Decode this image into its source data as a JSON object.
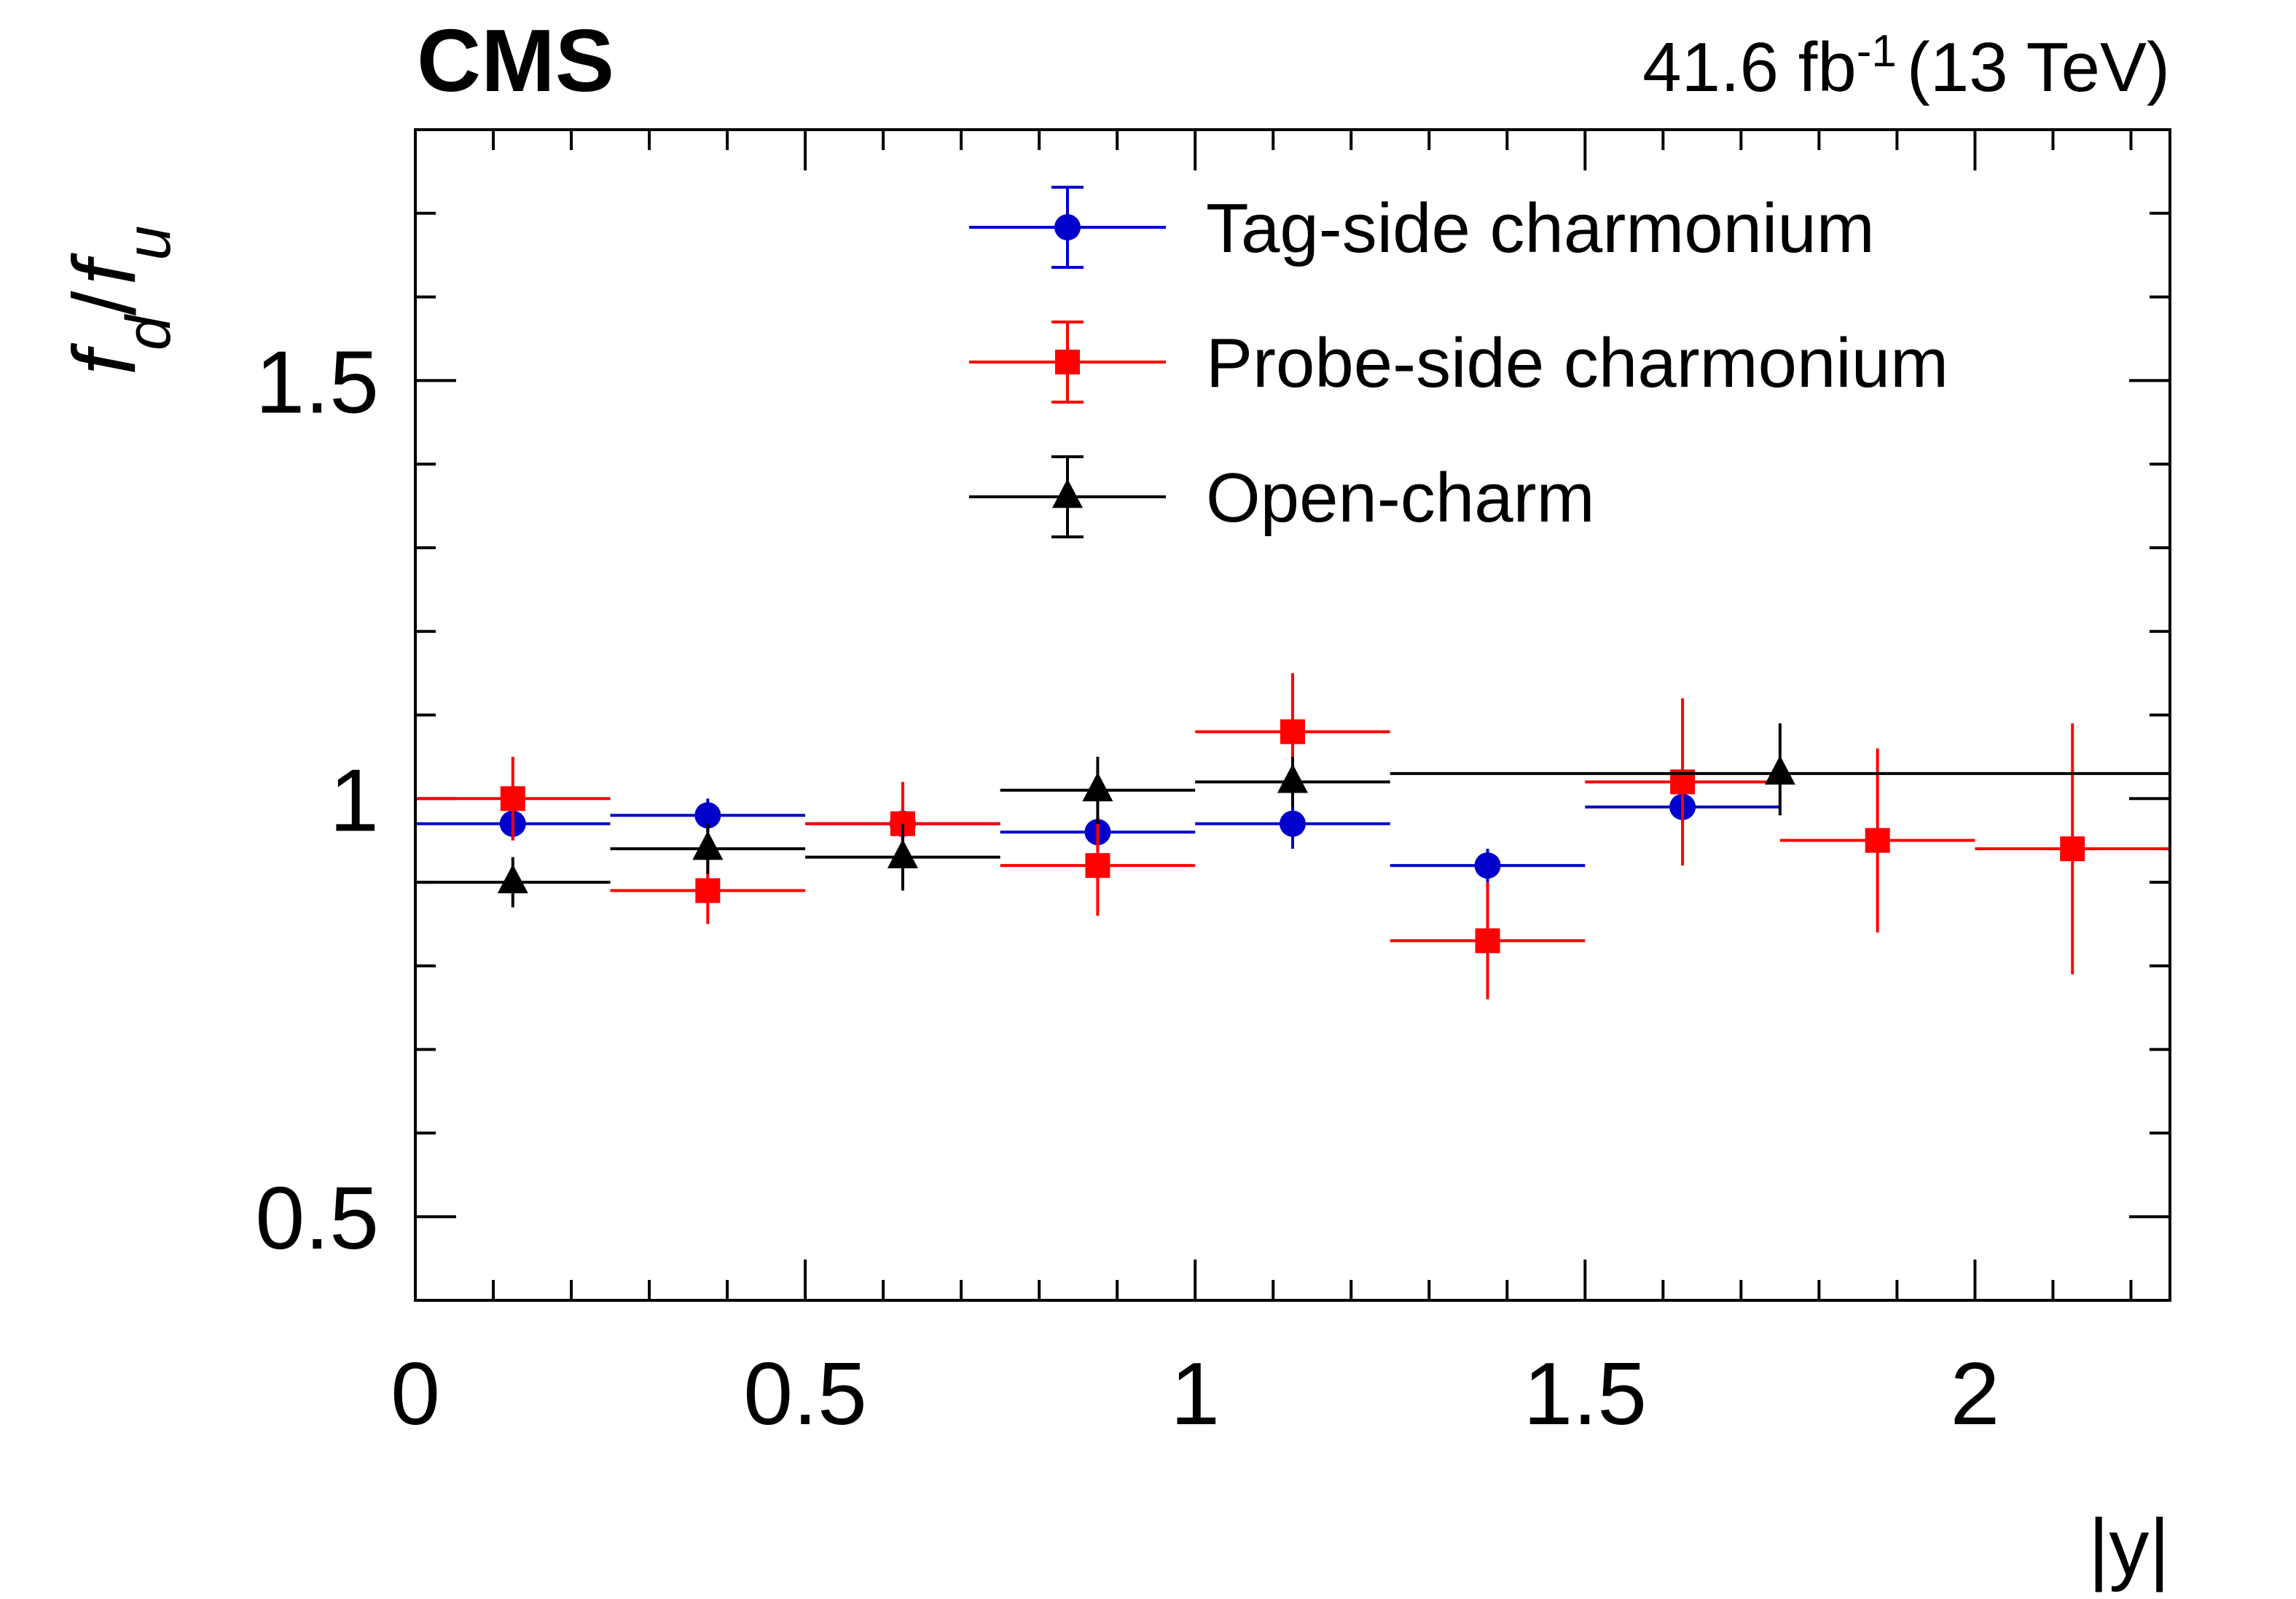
{
  "chart_data": {
    "type": "scatter",
    "experiment": "CMS",
    "luminosity": {
      "value": "41.6 fb",
      "exponent": "-1",
      "energy": "(13 TeV)"
    },
    "xlabel": "|y|",
    "ylabel": {
      "numerator": "f",
      "numerator_sub": "d",
      "slash": "/",
      "denominator": "f",
      "denominator_sub": "u"
    },
    "xlim": [
      0,
      2.25
    ],
    "ylim": [
      0.4,
      1.8
    ],
    "x_major_ticks": [
      0,
      0.5,
      1,
      1.5,
      2
    ],
    "x_tick_labels": [
      "0",
      "0.5",
      "1",
      "1.5",
      "2"
    ],
    "x_minor_step": 0.1,
    "y_major_ticks": [
      0.5,
      1,
      1.5
    ],
    "y_tick_labels": [
      "0.5",
      "1",
      "1.5"
    ],
    "y_minor_step": 0.1,
    "series": [
      {
        "name": "Tag-side charmonium",
        "color": "#0000cc",
        "marker": "circle",
        "points": [
          {
            "x": 0.125,
            "xlo": 0.0,
            "xhi": 0.25,
            "y": 0.97,
            "ylo": 0.95,
            "yhi": 0.99
          },
          {
            "x": 0.375,
            "xlo": 0.25,
            "xhi": 0.5,
            "y": 0.98,
            "ylo": 0.96,
            "yhi": 1.0
          },
          {
            "x": 0.625,
            "xlo": 0.5,
            "xhi": 0.75,
            "y": 0.97,
            "ylo": 0.95,
            "yhi": 0.99
          },
          {
            "x": 0.875,
            "xlo": 0.75,
            "xhi": 1.0,
            "y": 0.96,
            "ylo": 0.94,
            "yhi": 0.98
          },
          {
            "x": 1.125,
            "xlo": 1.0,
            "xhi": 1.25,
            "y": 0.97,
            "ylo": 0.94,
            "yhi": 1.0
          },
          {
            "x": 1.375,
            "xlo": 1.25,
            "xhi": 1.5,
            "y": 0.92,
            "ylo": 0.9,
            "yhi": 0.94
          },
          {
            "x": 1.625,
            "xlo": 1.5,
            "xhi": 1.75,
            "y": 0.99,
            "ylo": 0.97,
            "yhi": 1.01
          }
        ]
      },
      {
        "name": "Probe-side charmonium",
        "color": "#ff0000",
        "marker": "square",
        "points": [
          {
            "x": 0.125,
            "xlo": 0.0,
            "xhi": 0.25,
            "y": 1.0,
            "ylo": 0.95,
            "yhi": 1.05
          },
          {
            "x": 0.375,
            "xlo": 0.25,
            "xhi": 0.5,
            "y": 0.89,
            "ylo": 0.85,
            "yhi": 0.93
          },
          {
            "x": 0.625,
            "xlo": 0.5,
            "xhi": 0.75,
            "y": 0.97,
            "ylo": 0.93,
            "yhi": 1.02
          },
          {
            "x": 0.875,
            "xlo": 0.75,
            "xhi": 1.0,
            "y": 0.92,
            "ylo": 0.86,
            "yhi": 0.97
          },
          {
            "x": 1.125,
            "xlo": 1.0,
            "xhi": 1.25,
            "y": 1.08,
            "ylo": 1.01,
            "yhi": 1.15
          },
          {
            "x": 1.375,
            "xlo": 1.25,
            "xhi": 1.5,
            "y": 0.83,
            "ylo": 0.76,
            "yhi": 0.9
          },
          {
            "x": 1.625,
            "xlo": 1.5,
            "xhi": 1.75,
            "y": 1.02,
            "ylo": 0.92,
            "yhi": 1.12
          },
          {
            "x": 1.875,
            "xlo": 1.75,
            "xhi": 2.0,
            "y": 0.95,
            "ylo": 0.84,
            "yhi": 1.06
          },
          {
            "x": 2.125,
            "xlo": 2.0,
            "xhi": 2.25,
            "y": 0.94,
            "ylo": 0.79,
            "yhi": 1.09
          }
        ]
      },
      {
        "name": "Open-charm",
        "color": "#000000",
        "marker": "triangle",
        "points": [
          {
            "x": 0.125,
            "xlo": 0.0,
            "xhi": 0.25,
            "y": 0.9,
            "ylo": 0.87,
            "yhi": 0.93
          },
          {
            "x": 0.375,
            "xlo": 0.25,
            "xhi": 0.5,
            "y": 0.94,
            "ylo": 0.91,
            "yhi": 0.97
          },
          {
            "x": 0.625,
            "xlo": 0.5,
            "xhi": 0.75,
            "y": 0.93,
            "ylo": 0.89,
            "yhi": 0.97
          },
          {
            "x": 0.875,
            "xlo": 0.75,
            "xhi": 1.0,
            "y": 1.01,
            "ylo": 0.97,
            "yhi": 1.05
          },
          {
            "x": 1.125,
            "xlo": 1.0,
            "xhi": 1.25,
            "y": 1.02,
            "ylo": 0.99,
            "yhi": 1.05
          },
          {
            "x": 1.75,
            "xlo": 1.25,
            "xhi": 2.25,
            "y": 1.03,
            "ylo": 0.98,
            "yhi": 1.09
          }
        ]
      }
    ]
  }
}
